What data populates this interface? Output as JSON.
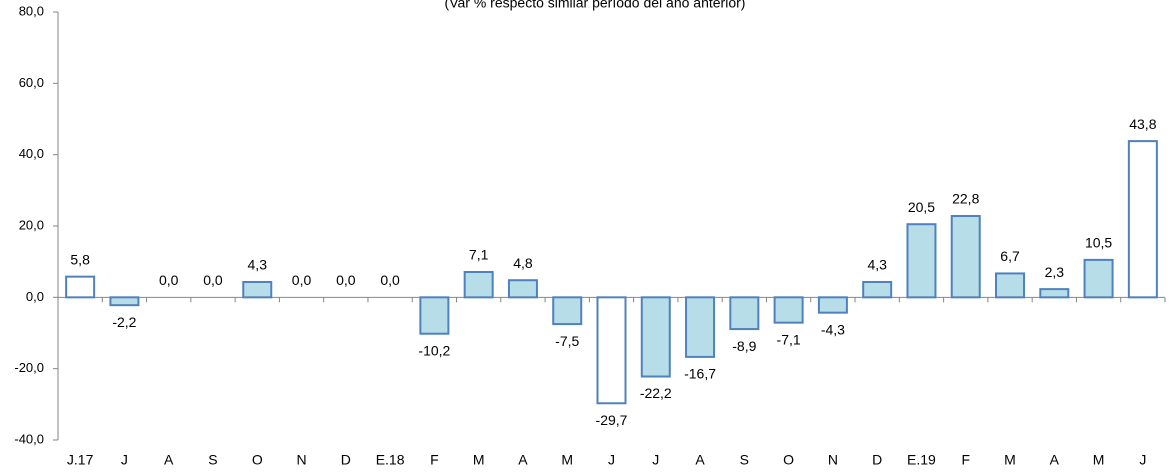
{
  "chart_data": {
    "type": "bar",
    "subtitle": "(Var % respecto similar período del año anterior)",
    "categories": [
      "J.17",
      "J",
      "A",
      "S",
      "O",
      "N",
      "D",
      "E.18",
      "F",
      "M",
      "A",
      "M",
      "J",
      "J",
      "A",
      "S",
      "O",
      "N",
      "D",
      "E.19",
      "F",
      "M",
      "A",
      "M",
      "J"
    ],
    "values": [
      5.8,
      -2.2,
      0.0,
      0.0,
      4.3,
      0.0,
      0.0,
      0.0,
      -10.2,
      7.1,
      4.8,
      -7.5,
      -29.7,
      -22.2,
      -16.7,
      -8.9,
      -7.1,
      -4.3,
      4.3,
      20.5,
      22.8,
      6.7,
      2.3,
      10.5,
      43.8
    ],
    "value_labels": [
      "5,8",
      "-2,2",
      "0,0",
      "0,0",
      "4,3",
      "0,0",
      "0,0",
      "0,0",
      "-10,2",
      "7,1",
      "4,8",
      "-7,5",
      "-29,7",
      "-22,2",
      "-16,7",
      "-8,9",
      "-7,1",
      "-4,3",
      "4,3",
      "20,5",
      "22,8",
      "6,7",
      "2,3",
      "10,5",
      "43,8"
    ],
    "colors": [
      "#ffffff",
      "#b7dde8",
      "#b7dde8",
      "#b7dde8",
      "#b7dde8",
      "#b7dde8",
      "#b7dde8",
      "#b7dde8",
      "#b7dde8",
      "#b7dde8",
      "#b7dde8",
      "#b7dde8",
      "#ffffff",
      "#b7dde8",
      "#b7dde8",
      "#b7dde8",
      "#b7dde8",
      "#b7dde8",
      "#b7dde8",
      "#b7dde8",
      "#b7dde8",
      "#b7dde8",
      "#b7dde8",
      "#b7dde8",
      "#ffffff"
    ],
    "edge_color": "#4f81bd",
    "ylim": [
      -40,
      80
    ],
    "yticks": [
      {
        "value": -40,
        "label": "-40,0"
      },
      {
        "value": -20,
        "label": "-20,0"
      },
      {
        "value": 0,
        "label": "0,0"
      },
      {
        "value": 20,
        "label": "20,0"
      },
      {
        "value": 40,
        "label": "40,0"
      },
      {
        "value": 60,
        "label": "60,0"
      },
      {
        "value": 80,
        "label": "80,0"
      }
    ]
  }
}
